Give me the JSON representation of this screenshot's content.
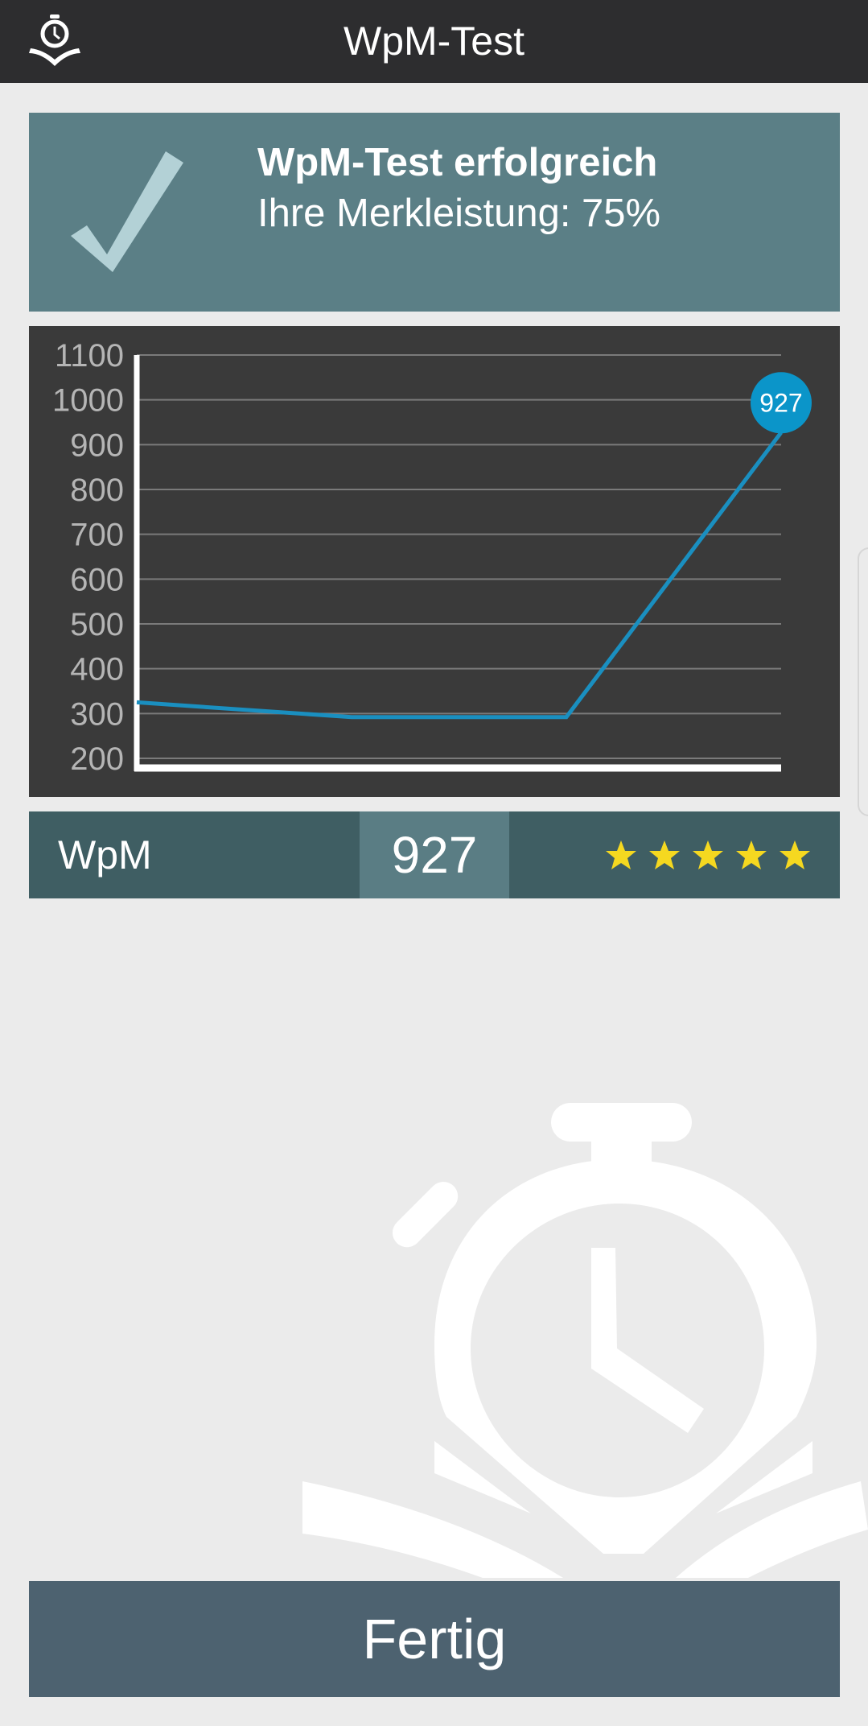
{
  "header": {
    "title": "WpM-Test",
    "logo_icon": "stopwatch-book-icon"
  },
  "banner": {
    "title": "WpM-Test erfolgreich",
    "subtitle": "Ihre Merkleistung: 75%",
    "icon": "checkmark-icon"
  },
  "chart_data": {
    "type": "line",
    "title": "",
    "xlabel": "",
    "ylabel": "",
    "ylim": [
      200,
      1100
    ],
    "yticks": [
      "1100",
      "1000",
      "900",
      "800",
      "700",
      "600",
      "500",
      "400",
      "300",
      "200"
    ],
    "grid": true,
    "x": [
      1,
      2,
      3,
      4
    ],
    "values": [
      325,
      292,
      292,
      927
    ],
    "highlight_label": "927",
    "line_color": "#1a8fc0",
    "point_color": "#0b95c9"
  },
  "result": {
    "label": "WpM",
    "value": "927",
    "stars": 5,
    "star_color": "#f5d820"
  },
  "watermark_icon": "stopwatch-book-icon",
  "done_button": {
    "label": "Fertig"
  },
  "colors": {
    "header": "#2d2d2f",
    "banner": "#5b7f86",
    "chart_bg": "#3a3a3a",
    "result_bar": "#3f5e63",
    "button": "#4d6270"
  }
}
